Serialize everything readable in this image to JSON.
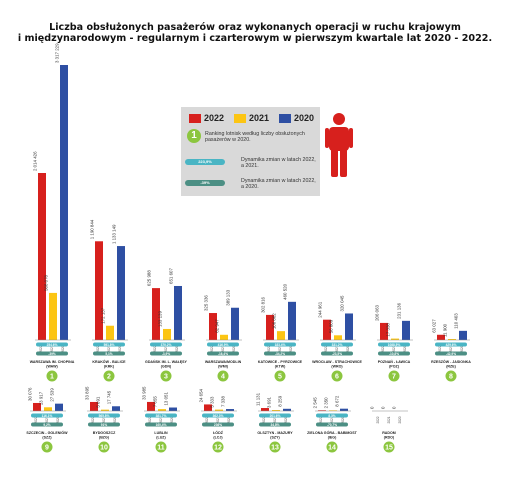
{
  "title_line1": "Liczba obsłużonych pasażerów oraz wykonanych operacji w ruchu krajowym",
  "title_line2": "i międzynarodowym - regularnym i czarterowym w pierwszym kwartale lat 2020 - 2022.",
  "colors": {
    "y2022": "#d7201d",
    "y2021": "#fcc513",
    "y2020": "#2e4fa3",
    "badge": "#8cc63f",
    "pill_teal": "#4ab5c4",
    "pill_dark": "#4c8f84",
    "person": "#d7201d"
  },
  "legend": {
    "years": [
      "2022",
      "2021",
      "2020"
    ],
    "rank_badge": "1",
    "rank_text": "Ranking lotnisk według liczby obsłużonych pasażerów w 2020.",
    "pill1_value": "223,9%",
    "pill1_text": "Dynamika zmian w latach 2022, a 2021.",
    "pill2_value": "-39%",
    "pill2_text": "Dynamika zmian w latach 2022, a 2020."
  },
  "chart_data": {
    "type": "bar",
    "series": [
      {
        "name": "2022",
        "values": [
          2014426,
          1190844,
          625988,
          325336,
          302816,
          244961,
          206063,
          63027,
          30076,
          33895,
          33985,
          24654,
          11131,
          2545,
          0
        ]
      },
      {
        "name": "2021",
        "values": [
          568078,
          172137,
          133139,
          62947,
          106862,
          56809,
          17338,
          11900,
          13917,
          5091,
          7055,
          5333,
          3691,
          2350,
          0
        ]
      },
      {
        "name": "2020",
        "values": [
          3317229,
          1133149,
          651607,
          389133,
          460520,
          320045,
          231136,
          110403,
          27539,
          17745,
          13051,
          7338,
          8259,
          8672,
          0
        ]
      }
    ],
    "airports": [
      {
        "rank": "1",
        "name": "WARSZAWA IM. CHOPINA",
        "code": "(WAW)",
        "labels": [
          "2 014 426",
          "568 078",
          "3 317 229"
        ],
        "pills": [
          "254,6%",
          "-39%"
        ]
      },
      {
        "rank": "2",
        "name": "KRAKÓW - BALICE",
        "code": "(KRK)",
        "labels": [
          "1 190 844",
          "172 137",
          "1 133 149"
        ],
        "pills": [
          "591,8%",
          "5,1%"
        ]
      },
      {
        "rank": "3",
        "name": "GDAŃSK IM. L. WAŁĘSY",
        "code": "(GDN)",
        "labels": [
          "625 988",
          "133 139",
          "651 607"
        ],
        "pills": [
          "370,2%",
          "-3,9%"
        ]
      },
      {
        "rank": "4",
        "name": "WARSZAWA/MODLIN",
        "code": "(WMI)",
        "labels": [
          "325 336",
          "62 947",
          "389 133"
        ],
        "pills": [
          "416,9%",
          "-16,4%"
        ]
      },
      {
        "rank": "5",
        "name": "KATOWICE - PYRZOWICE",
        "code": "(KTW)",
        "labels": [
          "302 816",
          "106 862",
          "460 520"
        ],
        "pills": [
          "183,4%",
          "-34,2%"
        ]
      },
      {
        "rank": "6",
        "name": "WROCŁAW - STRACHOWICE",
        "code": "(WRO)",
        "labels": [
          "244 961",
          "56 809",
          "320 045"
        ],
        "pills": [
          "331,2%",
          "-23,5%"
        ]
      },
      {
        "rank": "7",
        "name": "POZNAŃ - ŁAWICA",
        "code": "(POZ)",
        "labels": [
          "206 063",
          "17 338",
          "231 136"
        ],
        "pills": [
          "1088,5%",
          "-10,8%"
        ]
      },
      {
        "rank": "8",
        "name": "RZESZÓW - JASIONKA",
        "code": "(RZE)",
        "labels": [
          "63 027",
          "11 900",
          "110 403"
        ],
        "pills": [
          "429,6%",
          "-42,9%"
        ]
      },
      {
        "rank": "9",
        "name": "SZCZECIN - GOLENIÓW",
        "code": "(SZZ)",
        "labels": [
          "30 076",
          "13 917",
          "27 539"
        ],
        "pills": [
          "116,1%",
          "9,2%"
        ]
      },
      {
        "rank": "10",
        "name": "BYDGOSZCZ",
        "code": "(BZG)",
        "labels": [
          "33 895",
          "5 091",
          "17 745"
        ],
        "pills": [
          "565,8%",
          "91%"
        ]
      },
      {
        "rank": "11",
        "name": "LUBLIN",
        "code": "(LUZ)",
        "labels": [
          "33 985",
          "7 055",
          "13 051"
        ],
        "pills": [
          "381,7%",
          "160,4%"
        ]
      },
      {
        "rank": "12",
        "name": "ŁÓDŹ",
        "code": "(LCJ)",
        "labels": [
          "24 654",
          "5 333",
          "7 338"
        ],
        "pills": [
          "362,3%",
          "236%"
        ]
      },
      {
        "rank": "13",
        "name": "OLSZTYN - MAZURY",
        "code": "(SZY)",
        "labels": [
          "11 131",
          "3 691",
          "8 259"
        ],
        "pills": [
          "201,6%",
          "34,8%"
        ]
      },
      {
        "rank": "14",
        "name": "ZIELONA GÓRA - BABIMOST",
        "code": "(IEG)",
        "labels": [
          "2 545",
          "2 350",
          "8 672"
        ],
        "pills": [
          "8,3%",
          "-70,7%"
        ]
      },
      {
        "rank": "15",
        "name": "RADOM",
        "code": "(RDO)",
        "labels": [
          "0",
          "0",
          "0"
        ],
        "pills": [
          "",
          ""
        ]
      }
    ]
  }
}
